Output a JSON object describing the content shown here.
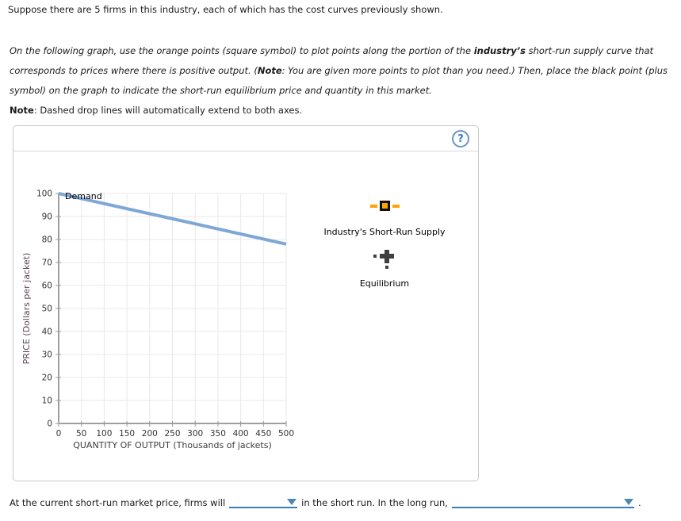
{
  "intro": "Suppose there are 5 firms in this industry, each of which has the cost curves previously shown.",
  "instructions": {
    "line1_pre": "On the following graph, use the orange points (square symbol) to plot points along the portion of the ",
    "line1_bold": "industry’s",
    "line1_post": " short-run supply curve that",
    "line2_pre": "corresponds to prices where there is positive output. (",
    "line2_bold": "Note",
    "line2_post": ": You are given more points to plot than you need.) Then, place the black point (plus",
    "line3": "symbol) on the graph to indicate the short-run equilibrium price and quantity in this market."
  },
  "note": {
    "label": "Note",
    "text": ": Dashed drop lines will automatically extend to both axes."
  },
  "panel": {
    "help_label": "?"
  },
  "palette": {
    "supply": {
      "label": "Industry's Short-Run Supply",
      "symbol": "orange-square-marker",
      "color": "#ffa400"
    },
    "equilibrium": {
      "label": "Equilibrium",
      "symbol": "black-plus-marker",
      "color": "#3f3f3f"
    }
  },
  "chart_data": {
    "type": "line",
    "title": "",
    "xlabel": "QUANTITY OF OUTPUT (Thousands of jackets)",
    "ylabel": "PRICE (Dollars per jacket)",
    "xlim": [
      0,
      500
    ],
    "ylim": [
      0,
      100
    ],
    "xticks": [
      0,
      50,
      100,
      150,
      200,
      250,
      300,
      350,
      400,
      450,
      500
    ],
    "yticks": [
      0,
      10,
      20,
      30,
      40,
      50,
      60,
      70,
      80,
      90,
      100
    ],
    "grid": true,
    "legend_position": "none",
    "series": [
      {
        "name": "Demand",
        "x": [
          0,
          500
        ],
        "y": [
          100,
          78
        ],
        "color": "#7da7d6"
      }
    ],
    "annotations": [
      {
        "text": "Demand",
        "x": 14,
        "y": 99
      }
    ]
  },
  "question": {
    "seg1": "At the current short-run market price, firms will",
    "dropdown1_value": "",
    "seg2": "in the short run. In the long run,",
    "dropdown2_value": "",
    "period": "."
  },
  "colors": {
    "demand_line": "#7da7d6",
    "supply_marker": "#ffa400",
    "equilibrium_marker": "#3f3f3f",
    "dropdown_accent": "#3c7cba",
    "help_icon": "#6b97c1",
    "gridline": "#e9e9e9"
  }
}
